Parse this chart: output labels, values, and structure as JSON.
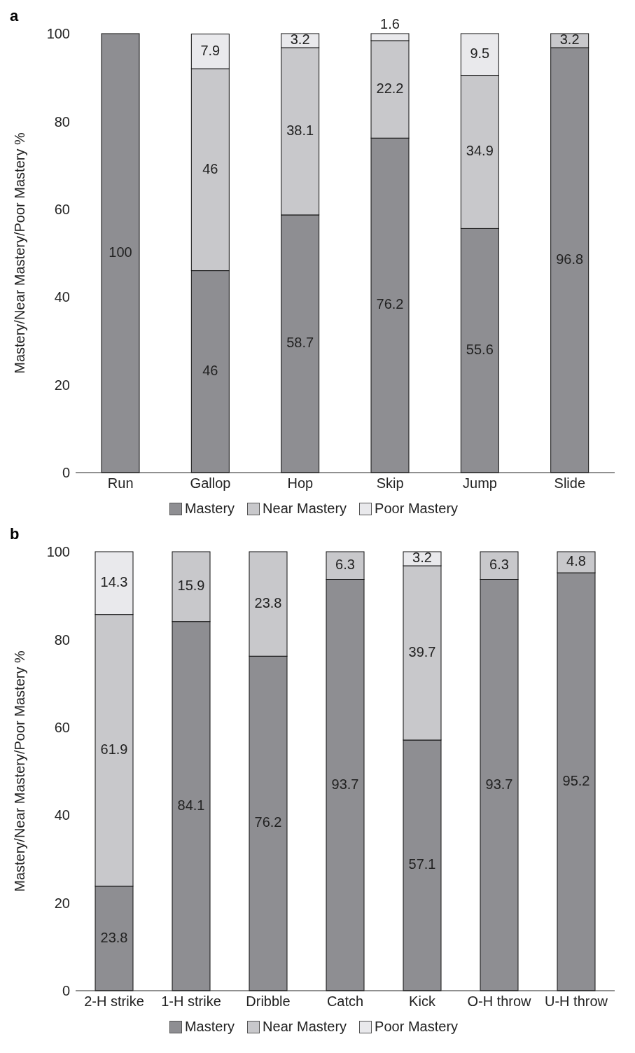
{
  "chart_data": [
    {
      "type": "bar",
      "title": "a",
      "ylabel": "Mastery/Near Mastery/Poor Mastery %",
      "categories": [
        "Run",
        "Gallop",
        "Hop",
        "Skip",
        "Jump",
        "Slide"
      ],
      "stacked": true,
      "legend": "bottom",
      "ylim": [
        0,
        100
      ],
      "yticks": [
        0,
        20,
        40,
        60,
        80,
        100
      ],
      "series": [
        {
          "name": "Mastery",
          "color": "#8e8e92",
          "values": [
            100,
            46,
            58.7,
            76.2,
            55.6,
            96.8
          ],
          "value_labels": [
            "100",
            "46",
            "58.7",
            "76.2",
            "55.6",
            "96.8"
          ]
        },
        {
          "name": "Near Mastery",
          "color": "#c8c8cb",
          "values": [
            0,
            46,
            38.1,
            22.2,
            34.9,
            3.2
          ],
          "value_labels": [
            null,
            "46",
            "38.1",
            "22.2",
            "34.9",
            "3.2"
          ]
        },
        {
          "name": "Poor Mastery",
          "color": "#e9e9ec",
          "values": [
            0,
            7.9,
            3.2,
            1.6,
            9.5,
            0
          ],
          "value_labels": [
            null,
            "7.9",
            "3.2",
            "1.6",
            "9.5",
            null
          ]
        }
      ]
    },
    {
      "type": "bar",
      "title": "b",
      "ylabel": "Mastery/Near Mastery/Poor Mastery %",
      "categories": [
        "2-H strike",
        "1-H strike",
        "Dribble",
        "Catch",
        "Kick",
        "O-H throw",
        "U-H throw"
      ],
      "stacked": true,
      "legend": "bottom",
      "ylim": [
        0,
        100
      ],
      "yticks": [
        0,
        20,
        40,
        60,
        80,
        100
      ],
      "series": [
        {
          "name": "Mastery",
          "color": "#8e8e92",
          "values": [
            23.8,
            84.1,
            76.2,
            93.7,
            57.1,
            93.7,
            95.2
          ],
          "value_labels": [
            "23.8",
            "84.1",
            "76.2",
            "93.7",
            "57.1",
            "93.7",
            "95.2"
          ]
        },
        {
          "name": "Near Mastery",
          "color": "#c8c8cb",
          "values": [
            61.9,
            15.9,
            23.8,
            6.3,
            39.7,
            6.3,
            4.8
          ],
          "value_labels": [
            "61.9",
            "15.9",
            "23.8",
            "6.3",
            "39.7",
            "6.3",
            "4.8"
          ]
        },
        {
          "name": "Poor Mastery",
          "color": "#e9e9ec",
          "values": [
            14.3,
            0,
            0,
            0,
            3.2,
            0,
            0
          ],
          "value_labels": [
            "14.3",
            null,
            null,
            null,
            "3.2",
            null,
            null
          ]
        }
      ]
    }
  ]
}
